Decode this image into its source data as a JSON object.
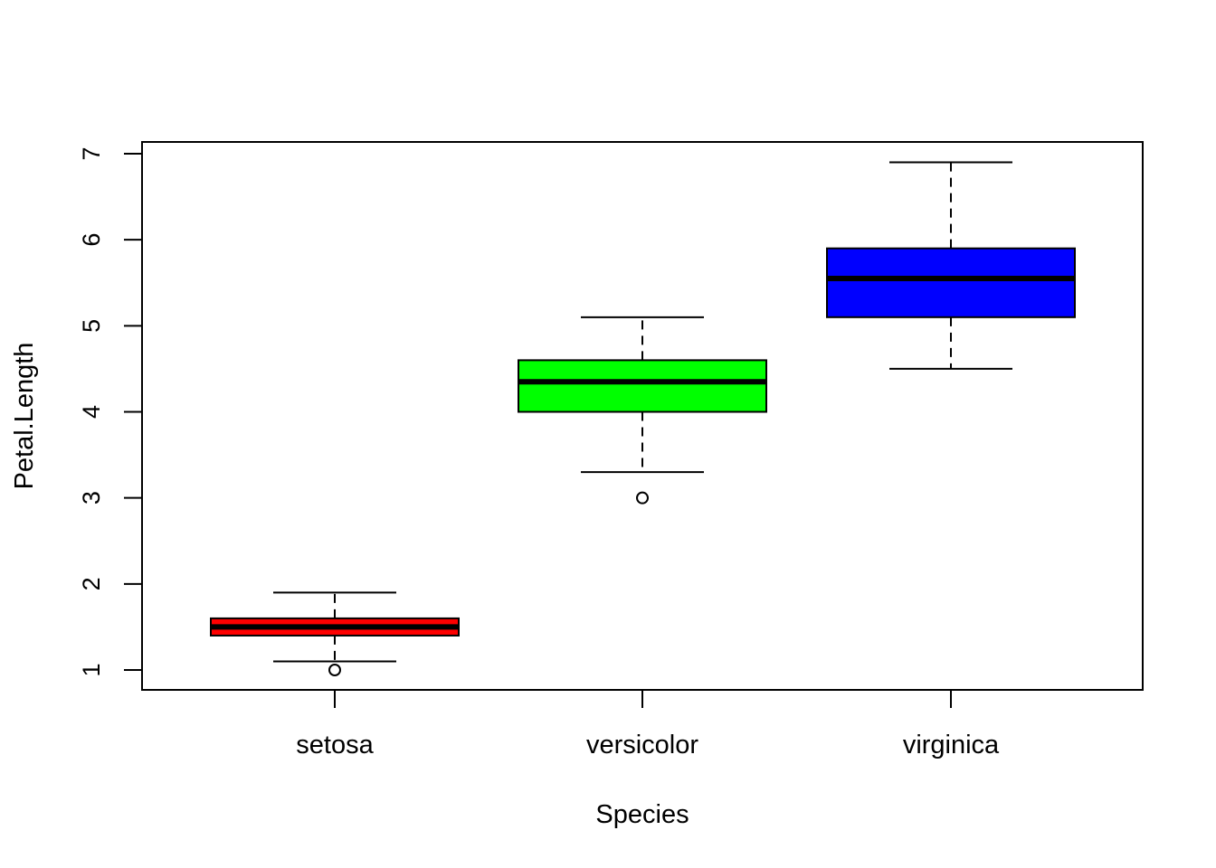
{
  "chart_data": {
    "type": "boxplot",
    "title": "",
    "xlabel": "Species",
    "ylabel": "Petal.Length",
    "ylim": [
      0.76,
      7.14
    ],
    "yticks": [
      1,
      2,
      3,
      4,
      5,
      6,
      7
    ],
    "ytick_labels": [
      "1",
      "2",
      "3",
      "4",
      "5",
      "6",
      "7"
    ],
    "categories": [
      "setosa",
      "versicolor",
      "virginica"
    ],
    "grid": false,
    "series": [
      {
        "name": "setosa",
        "color": "#ff0000",
        "whisker_low": 1.1,
        "q1": 1.4,
        "median": 1.5,
        "q3": 1.6,
        "whisker_high": 1.9,
        "outliers": [
          1.0
        ]
      },
      {
        "name": "versicolor",
        "color": "#00ff00",
        "whisker_low": 3.3,
        "q1": 4.0,
        "median": 4.35,
        "q3": 4.6,
        "whisker_high": 5.1,
        "outliers": [
          3.0
        ]
      },
      {
        "name": "virginica",
        "color": "#0000ff",
        "whisker_low": 4.5,
        "q1": 5.1,
        "median": 5.55,
        "q3": 5.9,
        "whisker_high": 6.9,
        "outliers": []
      }
    ]
  }
}
